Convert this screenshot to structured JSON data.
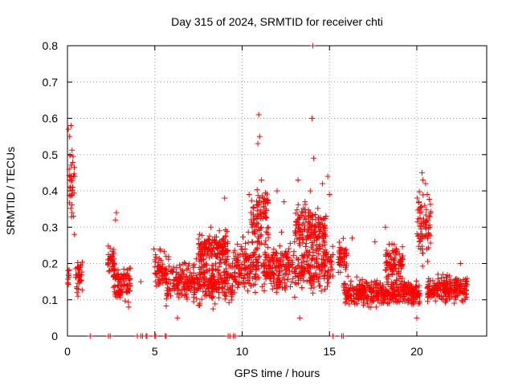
{
  "chart_data": {
    "type": "scatter",
    "title": "Day 315 of 2024, SRMTID for receiver chti",
    "xlabel": "GPS time / hours",
    "ylabel": "SRMTID / TECUs",
    "xlim": [
      0,
      24
    ],
    "ylim": [
      0,
      0.8
    ],
    "x_ticks": [
      0,
      5,
      10,
      15,
      20
    ],
    "x_tick_labels": [
      "0",
      "5",
      "10",
      "15",
      "20"
    ],
    "y_ticks": [
      0,
      0.1,
      0.2,
      0.3,
      0.4,
      0.5,
      0.6,
      0.7,
      0.8
    ],
    "y_tick_labels": [
      "0",
      "0.1",
      "0.2",
      "0.3",
      "0.4",
      "0.5",
      "0.6",
      "0.7",
      "0.8"
    ],
    "grid": true,
    "marker": "plus",
    "marker_color": "#ff0000",
    "series": [
      {
        "name": "SRMTID",
        "segments": [
          {
            "x_start": 0.0,
            "x_end": 0.1,
            "y_base": 0.17,
            "spread": 0.04
          },
          {
            "x_start": 0.1,
            "x_end": 0.45,
            "y_base": 0.42,
            "spread": 0.16
          },
          {
            "x_start": 0.45,
            "x_end": 0.85,
            "y_base": 0.17,
            "spread": 0.06
          },
          {
            "x_start": 2.3,
            "x_end": 2.7,
            "y_base": 0.21,
            "spread": 0.06
          },
          {
            "x_start": 2.6,
            "x_end": 3.6,
            "y_base": 0.15,
            "spread": 0.07
          },
          {
            "x_start": 5.0,
            "x_end": 5.6,
            "y_base": 0.18,
            "spread": 0.07
          },
          {
            "x_start": 5.6,
            "x_end": 9.5,
            "y_base": 0.15,
            "spread": 0.08
          },
          {
            "x_start": 7.5,
            "x_end": 9.2,
            "y_base": 0.24,
            "spread": 0.06
          },
          {
            "x_start": 9.5,
            "x_end": 15.2,
            "y_base": 0.19,
            "spread": 0.1
          },
          {
            "x_start": 10.5,
            "x_end": 11.5,
            "y_base": 0.33,
            "spread": 0.1
          },
          {
            "x_start": 13.0,
            "x_end": 14.8,
            "y_base": 0.3,
            "spread": 0.09
          },
          {
            "x_start": 15.5,
            "x_end": 16.0,
            "y_base": 0.22,
            "spread": 0.06
          },
          {
            "x_start": 15.8,
            "x_end": 20.2,
            "y_base": 0.12,
            "spread": 0.05
          },
          {
            "x_start": 18.2,
            "x_end": 19.2,
            "y_base": 0.2,
            "spread": 0.07
          },
          {
            "x_start": 20.0,
            "x_end": 20.8,
            "y_base": 0.3,
            "spread": 0.12
          },
          {
            "x_start": 20.6,
            "x_end": 22.9,
            "y_base": 0.13,
            "spread": 0.05
          }
        ],
        "points": [
          {
            "x": 0.05,
            "y": 0.57
          },
          {
            "x": 0.12,
            "y": 0.55
          },
          {
            "x": 0.2,
            "y": 0.58
          },
          {
            "x": 0.1,
            "y": 0.46
          },
          {
            "x": 0.3,
            "y": 0.41
          },
          {
            "x": 0.35,
            "y": 0.33
          },
          {
            "x": 0.4,
            "y": 0.28
          },
          {
            "x": 0.55,
            "y": 0.12
          },
          {
            "x": 0.6,
            "y": 0.11
          },
          {
            "x": 2.8,
            "y": 0.34
          },
          {
            "x": 2.75,
            "y": 0.32
          },
          {
            "x": 3.5,
            "y": 0.08
          },
          {
            "x": 4.2,
            "y": 0.15
          },
          {
            "x": 4.95,
            "y": 0.24
          },
          {
            "x": 8.2,
            "y": 0.3
          },
          {
            "x": 9.0,
            "y": 0.38
          },
          {
            "x": 8.7,
            "y": 0.29
          },
          {
            "x": 10.4,
            "y": 0.39
          },
          {
            "x": 10.9,
            "y": 0.53
          },
          {
            "x": 11.0,
            "y": 0.55
          },
          {
            "x": 10.95,
            "y": 0.61
          },
          {
            "x": 11.1,
            "y": 0.43
          },
          {
            "x": 11.2,
            "y": 0.38
          },
          {
            "x": 12.0,
            "y": 0.4
          },
          {
            "x": 12.4,
            "y": 0.37
          },
          {
            "x": 13.2,
            "y": 0.43
          },
          {
            "x": 13.6,
            "y": 0.37
          },
          {
            "x": 13.9,
            "y": 0.4
          },
          {
            "x": 14.0,
            "y": 0.6
          },
          {
            "x": 14.05,
            "y": 0.8
          },
          {
            "x": 14.1,
            "y": 0.49
          },
          {
            "x": 14.6,
            "y": 0.42
          },
          {
            "x": 14.9,
            "y": 0.44
          },
          {
            "x": 15.0,
            "y": 0.39
          },
          {
            "x": 14.8,
            "y": 0.33
          },
          {
            "x": 16.3,
            "y": 0.27
          },
          {
            "x": 17.6,
            "y": 0.26
          },
          {
            "x": 18.2,
            "y": 0.3
          },
          {
            "x": 20.3,
            "y": 0.45
          },
          {
            "x": 20.35,
            "y": 0.43
          },
          {
            "x": 20.5,
            "y": 0.42
          },
          {
            "x": 20.6,
            "y": 0.39
          },
          {
            "x": 20.45,
            "y": 0.36
          },
          {
            "x": 20.7,
            "y": 0.33
          },
          {
            "x": 20.75,
            "y": 0.3
          },
          {
            "x": 21.5,
            "y": 0.17
          },
          {
            "x": 22.5,
            "y": 0.2
          },
          {
            "x": 20.0,
            "y": 0.05
          },
          {
            "x": 13.3,
            "y": 0.05
          },
          {
            "x": 6.3,
            "y": 0.05
          }
        ],
        "zero_points": [
          1.3,
          2.35,
          2.45,
          4.0,
          4.2,
          4.3,
          4.5,
          4.55,
          5.0,
          5.05,
          5.6,
          5.65,
          9.2,
          9.3,
          9.5,
          9.6,
          15.2,
          15.7,
          15.8
        ]
      }
    ]
  }
}
